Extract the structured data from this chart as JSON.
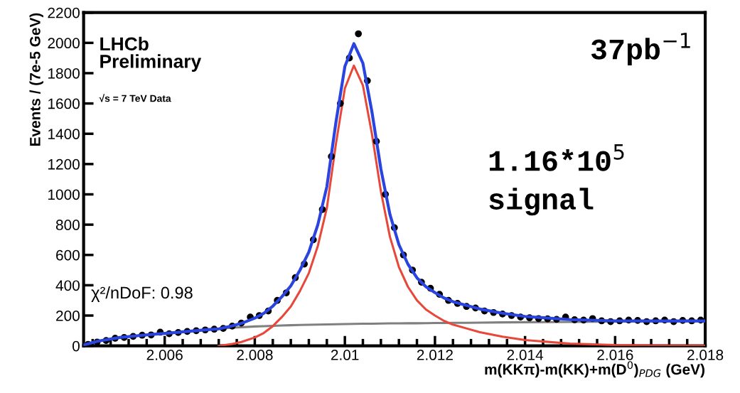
{
  "chart_data": {
    "type": "line",
    "xlabel": "m(KKπ)-m(KK)+m(D$^{0}$)$_{PDG}$ (GeV)",
    "ylabel": "Events / (7e-5 GeV)",
    "annotations": [
      "LHCb\nPreliminary",
      "√s = 7 TeV Data",
      "χ²/nDoF: 0.98",
      "37pb$^{−1}$",
      "1.16*10$^{5}$\nsignal"
    ],
    "xlim": [
      2.0042,
      2.018
    ],
    "xticks": [
      2.006,
      2.008,
      2.01,
      2.012,
      2.014,
      2.016,
      2.018
    ],
    "ylim": [
      0,
      2200
    ],
    "yticks": [
      0,
      200,
      400,
      600,
      800,
      1000,
      1200,
      1400,
      1600,
      1800,
      2000,
      2200
    ],
    "grid": false,
    "legend": false,
    "series": [
      {
        "color": "#808080",
        "x": [
          2.0042,
          2.0045,
          2.005,
          2.0055,
          2.006,
          2.0065,
          2.007,
          2.0072,
          2.0075,
          2.0077,
          2.008,
          2.0082,
          2.0084,
          2.0086,
          2.0088,
          2.009,
          2.0092,
          2.0094,
          2.0096,
          2.0098,
          2.01,
          2.0102,
          2.0104,
          2.0106,
          2.0108,
          2.011,
          2.0112,
          2.0114,
          2.0116,
          2.0118,
          2.012,
          2.0122,
          2.0124,
          2.0127,
          2.013,
          2.0135,
          2.014,
          2.015,
          2.016,
          2.017,
          2.018
        ],
        "values": [
          5,
          30,
          55,
          70,
          82,
          95,
          108,
          112,
          120,
          123,
          128,
          130,
          132,
          134,
          136,
          138,
          139,
          140,
          141,
          143,
          144,
          145,
          146,
          146,
          147,
          148,
          148,
          149,
          149,
          150,
          151,
          151,
          152,
          152,
          153,
          155,
          156,
          158,
          160,
          162,
          164
        ]
      },
      {
        "color": "#e8483a",
        "x": [
          2.0072,
          2.0075,
          2.0077,
          2.008,
          2.0082,
          2.0084,
          2.0086,
          2.0088,
          2.009,
          2.0092,
          2.0094,
          2.0096,
          2.0098,
          2.01,
          2.0102,
          2.0104,
          2.0106,
          2.0108,
          2.011,
          2.0112,
          2.0114,
          2.0116,
          2.0118,
          2.012,
          2.0122,
          2.0124,
          2.0127,
          2.013,
          2.0135,
          2.014,
          2.015,
          2.016,
          2.017,
          2.018
        ],
        "values": [
          0,
          12,
          25,
          55,
          85,
          130,
          190,
          260,
          360,
          480,
          660,
          910,
          1330,
          1700,
          1850,
          1720,
          1400,
          1020,
          720,
          520,
          390,
          300,
          240,
          200,
          165,
          140,
          115,
          90,
          60,
          38,
          15,
          5,
          2,
          0
        ]
      },
      {
        "type": "scatter",
        "color": "#000000",
        "marker": "circle",
        "x": [
          2.0043,
          2.0045,
          2.0047,
          2.0049,
          2.0051,
          2.0053,
          2.0055,
          2.0057,
          2.0059,
          2.0061,
          2.0063,
          2.0065,
          2.0067,
          2.0069,
          2.0071,
          2.0073,
          2.0075,
          2.0077,
          2.0079,
          2.0081,
          2.0083,
          2.0085,
          2.0087,
          2.0089,
          2.0091,
          2.0093,
          2.0095,
          2.0097,
          2.0099,
          2.0101,
          2.0103,
          2.0105,
          2.0107,
          2.0109,
          2.0111,
          2.0113,
          2.0115,
          2.0117,
          2.0119,
          2.0121,
          2.0123,
          2.0125,
          2.0127,
          2.0129,
          2.0131,
          2.0133,
          2.0135,
          2.0137,
          2.0139,
          2.0141,
          2.0143,
          2.0145,
          2.0147,
          2.0149,
          2.0151,
          2.0153,
          2.0155,
          2.0157,
          2.0159,
          2.0161,
          2.0163,
          2.0165,
          2.0167,
          2.0169,
          2.0171,
          2.0173,
          2.0175,
          2.0177,
          2.0179
        ],
        "values": [
          10,
          25,
          35,
          50,
          55,
          62,
          70,
          72,
          90,
          80,
          88,
          95,
          100,
          105,
          110,
          115,
          130,
          150,
          190,
          200,
          230,
          300,
          350,
          450,
          540,
          700,
          900,
          1250,
          1600,
          1900,
          2060,
          1750,
          1350,
          1000,
          780,
          600,
          500,
          420,
          380,
          340,
          300,
          280,
          260,
          250,
          230,
          220,
          210,
          200,
          190,
          185,
          180,
          178,
          175,
          190,
          172,
          170,
          180,
          165,
          160,
          165,
          170,
          168,
          160,
          165,
          170,
          160,
          168,
          165,
          170
        ]
      },
      {
        "color": "#2a44e0",
        "x": [
          2.0042,
          2.0045,
          2.005,
          2.0055,
          2.006,
          2.0065,
          2.007,
          2.0072,
          2.0075,
          2.0077,
          2.008,
          2.0082,
          2.0084,
          2.0086,
          2.0088,
          2.009,
          2.0092,
          2.0094,
          2.0096,
          2.0098,
          2.01,
          2.0102,
          2.0104,
          2.0106,
          2.0108,
          2.011,
          2.0112,
          2.0114,
          2.0116,
          2.0118,
          2.012,
          2.0122,
          2.0124,
          2.0127,
          2.013,
          2.0135,
          2.014,
          2.015,
          2.016,
          2.017,
          2.018
        ],
        "values": [
          5,
          30,
          55,
          70,
          82,
          95,
          108,
          112,
          132,
          148,
          183,
          215,
          262,
          324,
          396,
          498,
          619,
          800,
          1051,
          1473,
          1844,
          1995,
          1866,
          1546,
          1167,
          868,
          668,
          539,
          449,
          390,
          351,
          316,
          292,
          267,
          243,
          215,
          194,
          173,
          165,
          164,
          164
        ]
      }
    ]
  }
}
